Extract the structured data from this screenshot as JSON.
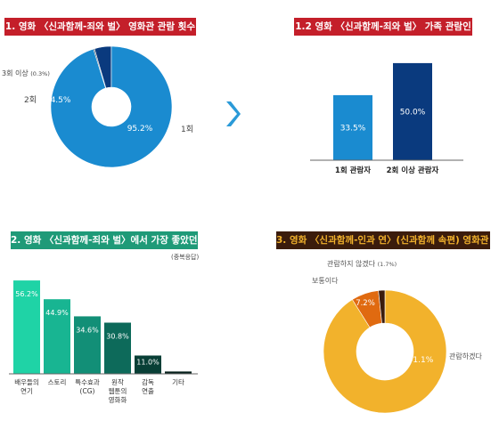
{
  "panels": {
    "p1": {
      "title": "1. 영화 〈신과함께-죄와 벌〉 영화관 관람 횟수"
    },
    "p12": {
      "title": "1.2 영화 〈신과함께-죄와 벌〉 가족 관람인"
    },
    "p2": {
      "title": "2. 영화 〈신과함께-죄와 벌〉에서 가장 좋았던 점",
      "note": "(중복응답)"
    },
    "p3": {
      "title": "3. 영화 〈신과함께-인과 연〉(신과함께 속편) 영화관 관람 의향"
    }
  },
  "colors": {
    "accent_blue": "#1a8bd0",
    "navy": "#0a3a7e",
    "teal": "#1fd3a6",
    "orange": "#f2b22c"
  },
  "chart_data": [
    {
      "type": "pie",
      "title": "1. 영화 〈신과함께-죄와 벌〉 영화관 관람 횟수",
      "slices": [
        {
          "label": "1회",
          "value": 95.2,
          "display": "95.2%",
          "color": "#1a8bd0"
        },
        {
          "label": "2회",
          "value": 4.5,
          "display": "4.5%",
          "color": "#0a3a7e"
        },
        {
          "label": "3회 이상",
          "value": 0.3,
          "display": "(0.3%)",
          "color": "#0a1a33"
        }
      ]
    },
    {
      "type": "bar",
      "title": "1.2 영화 〈신과함께-죄와 벌〉 가족 관람인",
      "categories": [
        "1회 관람자",
        "2회 이상 관람자"
      ],
      "values": [
        33.5,
        50.0
      ],
      "display": [
        "33.5%",
        "50.0%"
      ],
      "colors": [
        "#1a8bd0",
        "#0a3a7e"
      ],
      "ylim": [
        0,
        55
      ]
    },
    {
      "type": "bar",
      "title": "2. 영화 〈신과함께-죄와 벌〉에서 가장 좋았던 점",
      "categories": [
        [
          "배우들의",
          "연기"
        ],
        [
          "스토리"
        ],
        [
          "특수효과",
          "(CG)"
        ],
        [
          "원작",
          "웹툰의",
          "영화화"
        ],
        [
          "감독",
          "연출"
        ],
        [
          "기타"
        ]
      ],
      "values": [
        56.2,
        44.9,
        34.6,
        30.8,
        11.0,
        1.4
      ],
      "display": [
        "56.2%",
        "44.9%",
        "34.6%",
        "30.8%",
        "11.0%",
        "1.4%"
      ],
      "colors": [
        "#1fd3a6",
        "#18b592",
        "#128f77",
        "#0d6a5a",
        "#083f36",
        "#051f1b"
      ],
      "ylim": [
        0,
        60
      ]
    },
    {
      "type": "pie",
      "title": "3. 영화 〈신과함께-인과 연〉(신과함께 속편) 영화관 관람 의향",
      "slices": [
        {
          "label": "관람하겠다",
          "value": 91.1,
          "display": "91.1%",
          "color": "#f2b22c"
        },
        {
          "label": "보통이다",
          "value": 7.2,
          "display": "7.2%",
          "color": "#e06a10"
        },
        {
          "label": "관람하지 않겠다",
          "value": 1.7,
          "display": "(1.7%)",
          "color": "#3b1c0c"
        }
      ]
    }
  ]
}
